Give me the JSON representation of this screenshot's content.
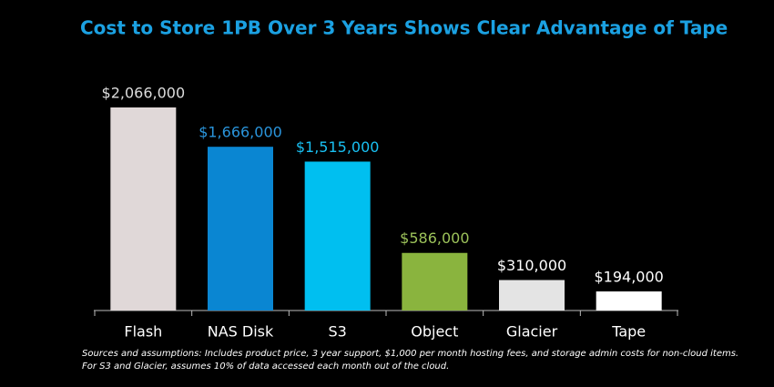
{
  "chart_data": {
    "type": "bar",
    "title": "Cost to Store 1PB Over 3 Years Shows Clear Advantage of Tape",
    "categories": [
      "Flash",
      "NAS Disk",
      "S3",
      "Object",
      "Glacier",
      "Tape"
    ],
    "values": [
      2066000,
      1666000,
      1515000,
      586000,
      310000,
      194000
    ],
    "value_labels": [
      "$2,066,000",
      "$1,666,000",
      "$1,515,000",
      "$586,000",
      "$310,000",
      "$194,000"
    ],
    "colors": [
      "#e0d8d8",
      "#0a86d2",
      "#00bff0",
      "#8ab43e",
      "#e4e4e4",
      "#ffffff"
    ],
    "label_colors": [
      "#dddddd",
      "#2a95dc",
      "#19c0f2",
      "#9cc25a",
      "#ffffff",
      "#ffffff"
    ],
    "notes": [
      "Sources and assumptions:  Includes product price, 3 year support, $1,000 per month hosting fees, and storage admin costs for non-cloud items.",
      "For S3 and Glacier, assumes 10% of data accessed each month out of the cloud."
    ]
  }
}
